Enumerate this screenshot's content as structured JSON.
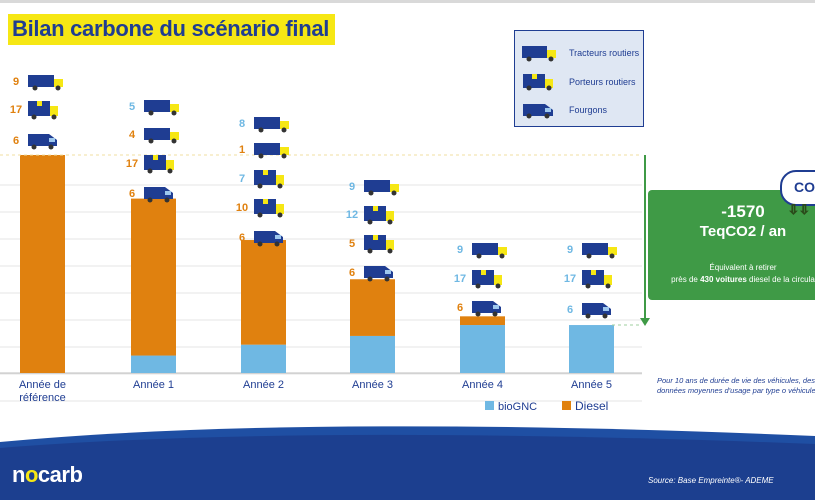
{
  "title": "Bilan carbone du scénario final",
  "legend_vehicles": [
    {
      "label": "Tracteurs routiers",
      "icon": "tractor-truck-icon"
    },
    {
      "label": "Porteurs routiers",
      "icon": "box-truck-icon"
    },
    {
      "label": "Fourgons",
      "icon": "van-icon"
    }
  ],
  "kpi": {
    "value": "-1570",
    "unit": "TeqCO2 / an",
    "line1": "Équivalent à retirer",
    "line2_pre": "près de ",
    "line2_bold": "430 voitures",
    "line2_post": " diesel de la circula",
    "cloud": "CO"
  },
  "footnote": "Pour 10 ans de durée de vie des véhicules, des données moyennes d'usage par type o véhicule",
  "logo": {
    "pre": "n",
    "o": "o",
    "post": "carb"
  },
  "source": "Source: Base Empreinte®- ADEME",
  "colors": {
    "biognc": "#6fb8e3",
    "diesel": "#e0810f",
    "navy": "#1f3d92",
    "yellow": "#f6e714",
    "green": "#3f9a46"
  },
  "chart_data": {
    "type": "bar",
    "stacked": true,
    "categories": [
      "Année de référence",
      "Année 1",
      "Année 2",
      "Année 3",
      "Année 4",
      "Année 5"
    ],
    "series": [
      {
        "name": "bioGNC",
        "color": "#6fb8e3",
        "values": [
          0,
          8,
          13,
          17,
          22,
          22
        ]
      },
      {
        "name": "Diesel",
        "color": "#e0810f",
        "values": [
          100,
          72,
          48,
          26,
          4,
          0
        ]
      }
    ],
    "vehicle_counts": [
      {
        "tracteurs": 9,
        "porteurs": 17,
        "fourgons": 6,
        "fuel": "diesel"
      },
      {
        "tracteurs_gnc": 5,
        "tracteurs_diesel": 4,
        "porteurs": 17,
        "fourgons": 6,
        "fuel": "mixed"
      },
      {
        "tracteurs_gnc": 8,
        "tracteurs_diesel": 1,
        "porteurs_gnc": 7,
        "porteurs_diesel": 10,
        "fourgons": 6,
        "fuel": "mixed"
      },
      {
        "tracteurs": 9,
        "porteurs_gnc": 12,
        "porteurs_diesel": 5,
        "fourgons": 6,
        "fuel": "mixed"
      },
      {
        "tracteurs": 9,
        "porteurs": 17,
        "fourgons": 6,
        "fuel": "mixed"
      },
      {
        "tracteurs": 9,
        "porteurs": 17,
        "fourgons": 6,
        "fuel": "biognc"
      }
    ],
    "grid": true,
    "legend": "bottom-right"
  }
}
